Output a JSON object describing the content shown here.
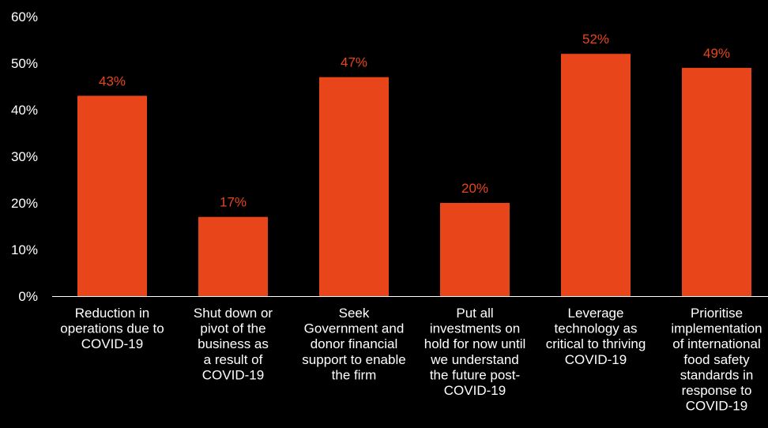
{
  "chart_data": {
    "type": "bar",
    "title": "",
    "xlabel": "",
    "ylabel": "",
    "ylim": [
      0,
      60
    ],
    "yticks": [
      "0%",
      "10%",
      "20%",
      "30%",
      "40%",
      "50%",
      "60%"
    ],
    "ytick_values": [
      0,
      10,
      20,
      30,
      40,
      50,
      60
    ],
    "grid": false,
    "legend": "none",
    "categories": [
      [
        "Reduction in",
        "operations due to",
        "COVID-19"
      ],
      [
        "Shut down or",
        "pivot of the",
        "business as",
        "a result of",
        "COVID-19"
      ],
      [
        "Seek",
        "Government and",
        "donor financial",
        "support to enable",
        "the firm"
      ],
      [
        "Put all",
        "investments on",
        "hold for now until",
        "we understand",
        "the future post-",
        "COVID-19"
      ],
      [
        "Leverage",
        "technology as",
        "critical to thriving",
        "COVID-19"
      ],
      [
        "Prioritise",
        "implementation",
        "of international",
        "food safety",
        "standards in",
        "response to",
        "COVID-19"
      ]
    ],
    "values": [
      43,
      17,
      47,
      20,
      52,
      49
    ],
    "data_labels": [
      "43%",
      "17%",
      "47%",
      "20%",
      "52%",
      "49%"
    ],
    "colors": {
      "background": "#000000",
      "bar": "#E8461A",
      "data_label": "#E8461A",
      "text": "#FFFFFF",
      "axis": "#FFFFFF"
    }
  }
}
